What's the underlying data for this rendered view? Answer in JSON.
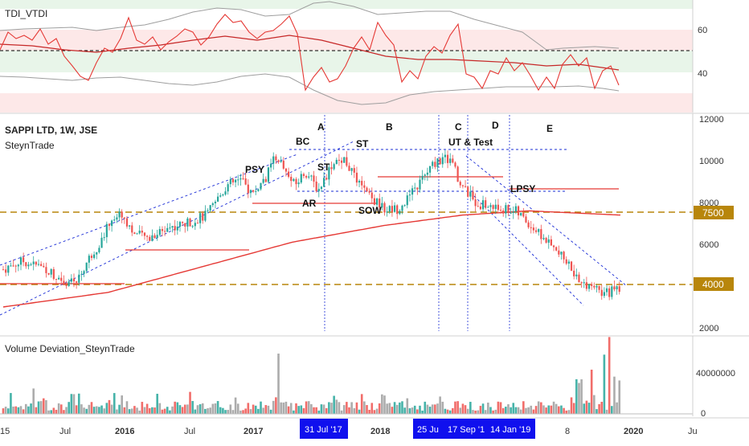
{
  "colors": {
    "candle_up": "#26a69a",
    "candle_down": "#ef5350",
    "ma_red": "#e53935",
    "gold": "#b8860b",
    "channel_blue": "#1a2cd6",
    "date_badge_bg": "#1010ee",
    "tdi_green_zone": "#e8f5e9",
    "tdi_red_zone": "#fde8e8",
    "vol_gray": "#9e9e9e"
  },
  "tdi_panel": {
    "title": "TDI_VTDI",
    "ticks": [
      "60",
      "40"
    ]
  },
  "price_panel": {
    "title": "SAPPI LTD, 1W, JSE",
    "subtitle": "SteynTrade",
    "ticks": [
      "12000",
      "10000",
      "8000",
      "6000",
      "4000",
      "2000"
    ],
    "badges": [
      "7500",
      "4000"
    ]
  },
  "volume_panel": {
    "title": "Volume Deviation_SteynTrade",
    "ticks": [
      "40000000",
      "0"
    ]
  },
  "annotations": {
    "phase_a": "A",
    "phase_b": "B",
    "phase_c": "C",
    "phase_d": "D",
    "phase_e": "E",
    "psy": "PSY",
    "bc": "BC",
    "ar": "AR",
    "st1": "ST",
    "st2": "ST",
    "sow": "SOW",
    "ut_test": "UT & Test",
    "lpsy": "LPSY"
  },
  "time_axis": {
    "labels": [
      "15",
      "Jul",
      "2016",
      "Jul",
      "2017",
      "2018",
      "8",
      "2020",
      "Ju"
    ],
    "badges": [
      "31 Jul '17",
      "25 Ju",
      "17 Sep '1",
      "14 Jan '19"
    ]
  },
  "chart_data": {
    "type": "candlestick",
    "title": "SAPPI LTD, 1W, JSE",
    "ylim": [
      2000,
      12000
    ],
    "key_levels": [
      7500,
      4000
    ],
    "price_path": [
      {
        "x": 2015.5,
        "y": 4800
      },
      {
        "x": 2015.65,
        "y": 5200
      },
      {
        "x": 2015.8,
        "y": 4900
      },
      {
        "x": 2015.95,
        "y": 4300
      },
      {
        "x": 2016.05,
        "y": 4100
      },
      {
        "x": 2016.15,
        "y": 5300
      },
      {
        "x": 2016.25,
        "y": 6200
      },
      {
        "x": 2016.32,
        "y": 7200
      },
      {
        "x": 2016.4,
        "y": 7500
      },
      {
        "x": 2016.5,
        "y": 6500
      },
      {
        "x": 2016.6,
        "y": 6300
      },
      {
        "x": 2016.75,
        "y": 6800
      },
      {
        "x": 2016.9,
        "y": 7000
      },
      {
        "x": 2017.05,
        "y": 7400
      },
      {
        "x": 2017.2,
        "y": 8800
      },
      {
        "x": 2017.3,
        "y": 9100
      },
      {
        "x": 2017.4,
        "y": 8400
      },
      {
        "x": 2017.5,
        "y": 9200
      },
      {
        "x": 2017.58,
        "y": 10300
      },
      {
        "x": 2017.64,
        "y": 9600
      },
      {
        "x": 2017.72,
        "y": 8800
      },
      {
        "x": 2017.8,
        "y": 9500
      },
      {
        "x": 2017.9,
        "y": 8600
      },
      {
        "x": 2018.0,
        "y": 9800
      },
      {
        "x": 2018.1,
        "y": 10100
      },
      {
        "x": 2018.2,
        "y": 8900
      },
      {
        "x": 2018.3,
        "y": 8200
      },
      {
        "x": 2018.4,
        "y": 7700
      },
      {
        "x": 2018.5,
        "y": 7700
      },
      {
        "x": 2018.6,
        "y": 8300
      },
      {
        "x": 2018.7,
        "y": 9200
      },
      {
        "x": 2018.8,
        "y": 10000
      },
      {
        "x": 2018.9,
        "y": 10100
      },
      {
        "x": 2019.0,
        "y": 8700
      },
      {
        "x": 2019.1,
        "y": 8000
      },
      {
        "x": 2019.2,
        "y": 7800
      },
      {
        "x": 2019.3,
        "y": 7700
      },
      {
        "x": 2019.4,
        "y": 7600
      },
      {
        "x": 2019.5,
        "y": 7000
      },
      {
        "x": 2019.6,
        "y": 6400
      },
      {
        "x": 2019.7,
        "y": 5700
      },
      {
        "x": 2019.8,
        "y": 5100
      },
      {
        "x": 2019.9,
        "y": 4200
      },
      {
        "x": 2020.0,
        "y": 3800
      },
      {
        "x": 2020.1,
        "y": 3700
      },
      {
        "x": 2020.2,
        "y": 3800
      }
    ],
    "moving_average": [
      {
        "x": 2015.5,
        "y": 3000
      },
      {
        "x": 2016.3,
        "y": 3700
      },
      {
        "x": 2017.0,
        "y": 4900
      },
      {
        "x": 2017.7,
        "y": 6100
      },
      {
        "x": 2018.4,
        "y": 6900
      },
      {
        "x": 2019.0,
        "y": 7400
      },
      {
        "x": 2019.5,
        "y": 7600
      },
      {
        "x": 2020.2,
        "y": 7400
      }
    ],
    "phase_boundaries": [
      "31 Jul '17",
      "25 Ju",
      "17 Sep '1",
      "14 Jan '19"
    ],
    "volume_deviation_peak": 40000000
  }
}
